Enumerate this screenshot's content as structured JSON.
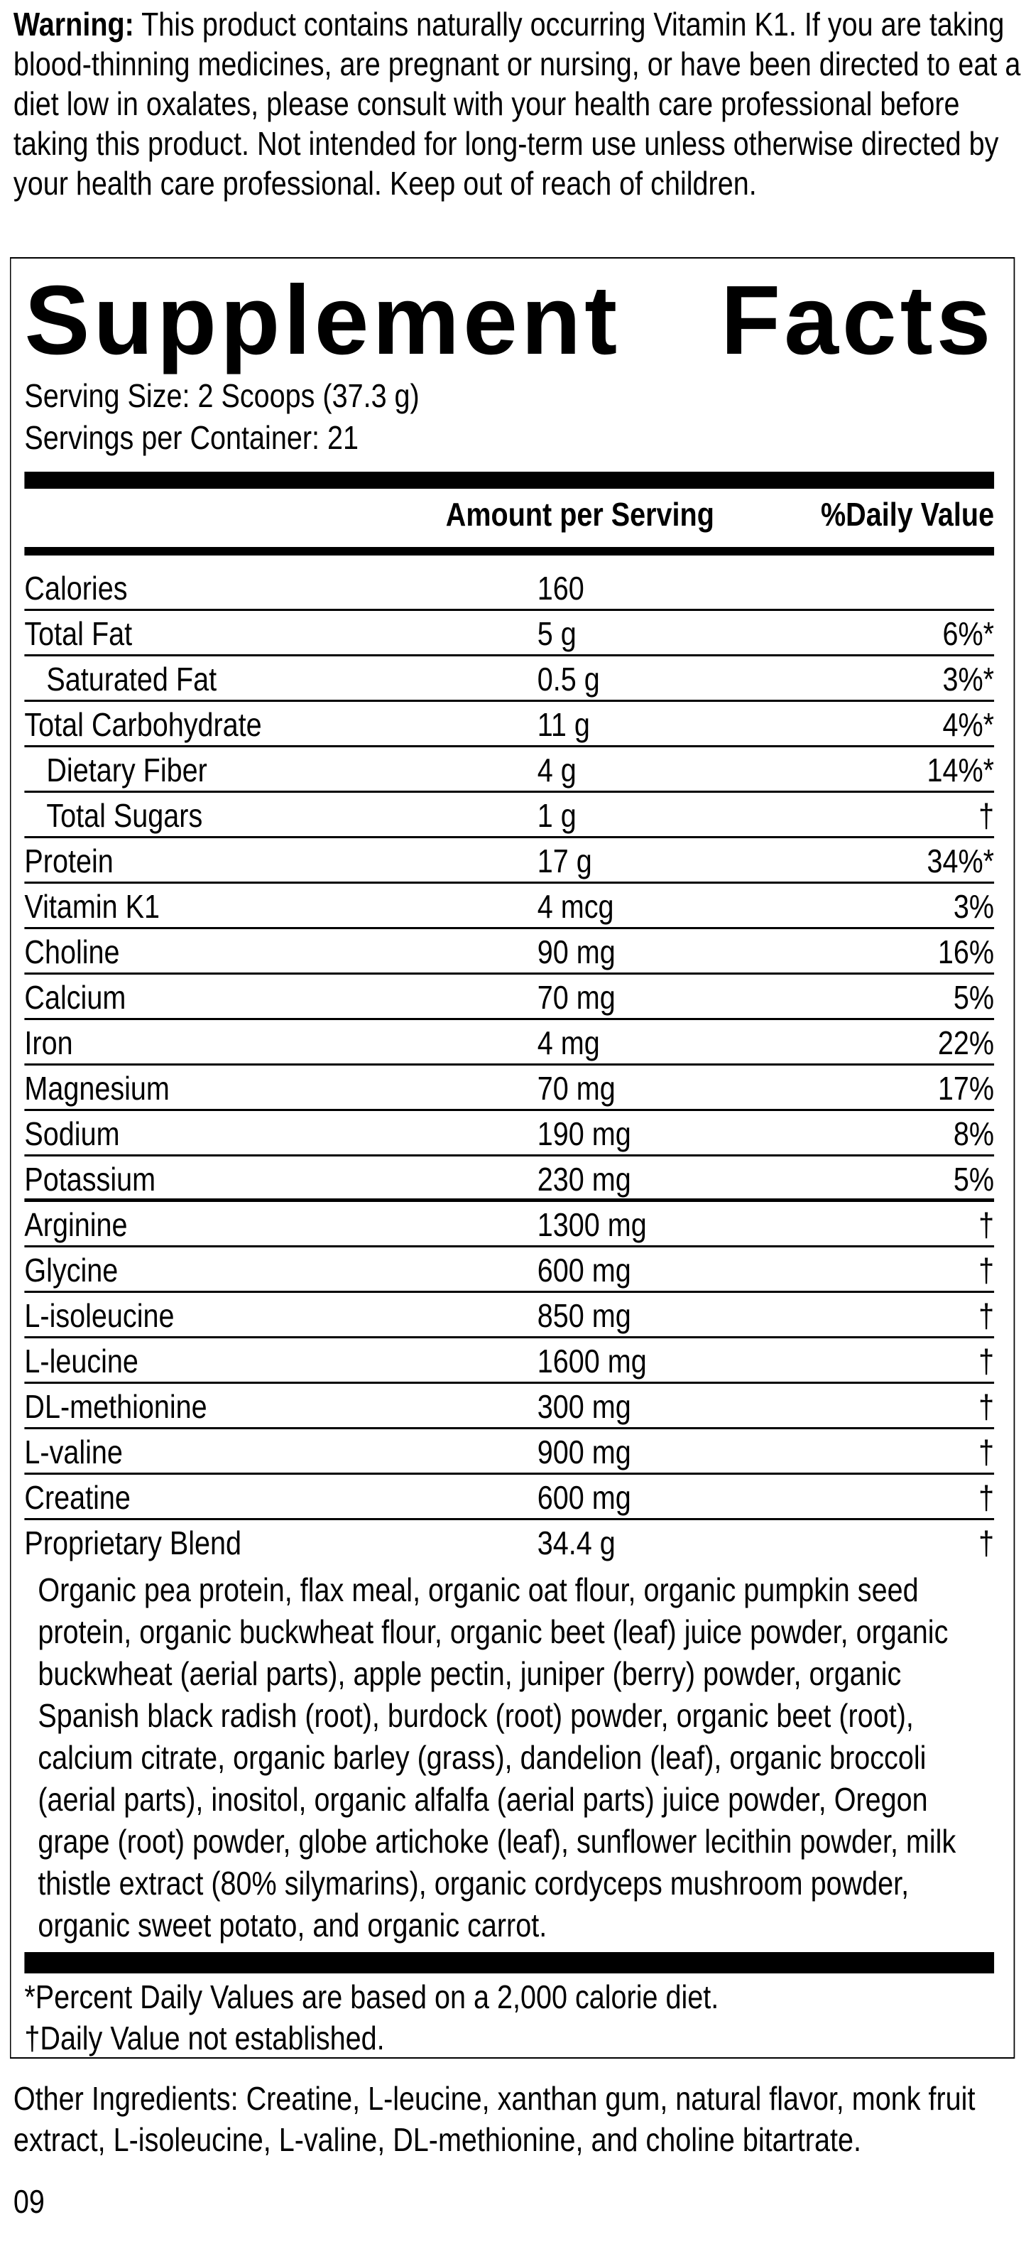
{
  "warning": {
    "label": "Warning:",
    "text": "This product contains naturally occurring Vitamin K1. If you are taking blood-thinning medicines, are pregnant or nursing, or have been directed to eat a diet low in oxalates, please consult with your health care professional before taking this product. Not intended for long-term use unless otherwise directed by your health care professional. Keep out of reach of children."
  },
  "facts": {
    "title_word1": "Supplement",
    "title_word2": "Facts",
    "serving_size": "Serving Size: 2 Scoops (37.3 g)",
    "servings_per_container": "Servings per Container: 21",
    "header_amount": "Amount per Serving",
    "header_dv": "%Daily Value",
    "rows": [
      {
        "name": "Calories",
        "amount": "160",
        "dv": ""
      },
      {
        "name": "Total Fat",
        "amount": "5 g",
        "dv": "6%*"
      },
      {
        "name": "Saturated Fat",
        "amount": "0.5 g",
        "dv": "3%*"
      },
      {
        "name": "Total Carbohydrate",
        "amount": "11 g",
        "dv": "4%*"
      },
      {
        "name": "Dietary Fiber",
        "amount": "4 g",
        "dv": "14%*"
      },
      {
        "name": "Total Sugars",
        "amount": "1 g",
        "dv": "†"
      },
      {
        "name": "Protein",
        "amount": "17 g",
        "dv": "34%*"
      },
      {
        "name": "Vitamin K1",
        "amount": "4 mcg",
        "dv": "3%"
      },
      {
        "name": "Choline",
        "amount": "90 mg",
        "dv": "16%"
      },
      {
        "name": "Calcium",
        "amount": "70 mg",
        "dv": "5%"
      },
      {
        "name": "Iron",
        "amount": "4 mg",
        "dv": "22%"
      },
      {
        "name": "Magnesium",
        "amount": "70 mg",
        "dv": "17%"
      },
      {
        "name": "Sodium",
        "amount": "190 mg",
        "dv": "8%"
      },
      {
        "name": "Potassium",
        "amount": "230 mg",
        "dv": "5%"
      },
      {
        "name": "Arginine",
        "amount": "1300 mg",
        "dv": "†"
      },
      {
        "name": "Glycine",
        "amount": "600 mg",
        "dv": "†"
      },
      {
        "name": "L-isoleucine",
        "amount": "850 mg",
        "dv": "†"
      },
      {
        "name": "L-leucine",
        "amount": "1600 mg",
        "dv": "†"
      },
      {
        "name": "DL-methionine",
        "amount": "300 mg",
        "dv": "†"
      },
      {
        "name": "L-valine",
        "amount": "900 mg",
        "dv": "†"
      },
      {
        "name": "Creatine",
        "amount": "600 mg",
        "dv": "†"
      },
      {
        "name": "Proprietary Blend",
        "amount": "34.4 g",
        "dv": "†"
      }
    ],
    "blend_ingredients": "Organic pea protein, flax meal, organic oat flour, organic pumpkin seed protein, organic buckwheat flour, organic beet (leaf) juice powder, organic buckwheat (aerial parts), apple pectin, juniper (berry) powder, organic Spanish black radish (root), burdock (root) powder, organic beet (root), calcium citrate, organic barley (grass), dandelion (leaf), organic broccoli (aerial parts), inositol, organic alfalfa (aerial parts) juice powder, Oregon grape (root) powder, globe artichoke (leaf), sunflower lecithin powder, milk thistle extract (80% silymarins), organic cordyceps mushroom powder, organic sweet potato, and organic carrot.",
    "footnote_dv": "*Percent Daily Values are based on a 2,000 calorie diet.",
    "footnote_dagger": "†Daily Value not established."
  },
  "other_ingredients": "Other Ingredients: Creatine, L-leucine, xanthan gum, natural flavor, monk fruit extract, L-isoleucine, L-valine, DL-methionine, and choline bitartrate.",
  "code": "09"
}
